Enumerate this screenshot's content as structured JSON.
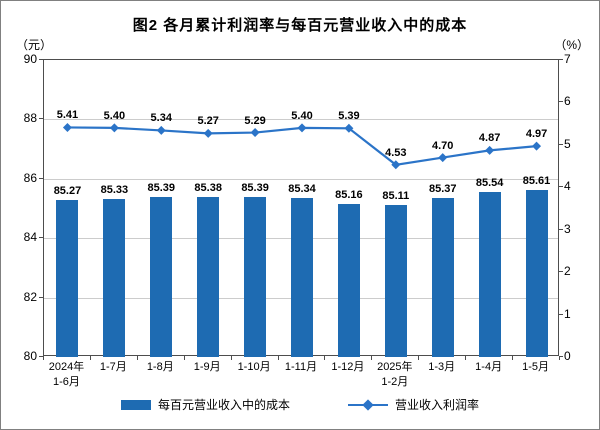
{
  "chart_data": {
    "type": "combo",
    "title": "图2  各月累计利润率与每百元营业收入中的成本",
    "categories": [
      [
        "2024年",
        "1-6月"
      ],
      [
        "1-7月"
      ],
      [
        "1-8月"
      ],
      [
        "1-9月"
      ],
      [
        "1-10月"
      ],
      [
        "1-11月"
      ],
      [
        "1-12月"
      ],
      [
        "2025年",
        "1-2月"
      ],
      [
        "1-3月"
      ],
      [
        "1-4月"
      ],
      [
        "1-5月"
      ]
    ],
    "series": [
      {
        "name": "每百元营业收入中的成本",
        "type": "bar",
        "axis": "left",
        "color": "#1E6BB2",
        "values": [
          85.27,
          85.33,
          85.39,
          85.38,
          85.39,
          85.34,
          85.16,
          85.11,
          85.37,
          85.54,
          85.61
        ]
      },
      {
        "name": "营业收入利润率",
        "type": "line",
        "axis": "right",
        "color": "#2B74C8",
        "marker": "diamond",
        "values": [
          5.41,
          5.4,
          5.34,
          5.27,
          5.29,
          5.4,
          5.39,
          4.53,
          4.7,
          4.87,
          4.97
        ]
      }
    ],
    "left_axis": {
      "min": 80,
      "max": 90,
      "step": 2
    },
    "right_axis": {
      "min": 0,
      "max": 7,
      "step": 1
    },
    "grid": true,
    "legend_position": "bottom"
  },
  "axes": {
    "left_unit": "（元）",
    "right_unit": "（%）",
    "left_ticks": [
      80,
      82,
      84,
      86,
      88,
      90
    ],
    "right_ticks": [
      0,
      1,
      2,
      3,
      4,
      5,
      6,
      7
    ]
  }
}
